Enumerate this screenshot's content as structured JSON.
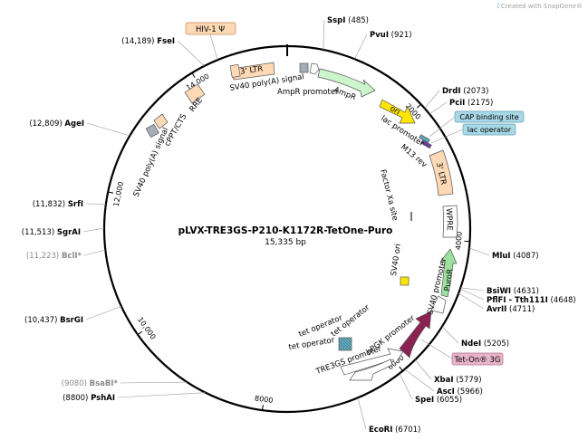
{
  "plasmid": {
    "name": "pLVX-TRE3GS-P210-K1172R-TetOne-Puro",
    "length_label": "15,335 bp",
    "total_bp": 15335
  },
  "brand": {
    "text": "Created with SnapGene®",
    "icon": "snapgene-logo-icon"
  },
  "ruler_ticks": [
    {
      "bp": 2000,
      "label": "2000"
    },
    {
      "bp": 4000,
      "label": "4000"
    },
    {
      "bp": 6000,
      "label": "6000"
    },
    {
      "bp": 8000,
      "label": "8000"
    },
    {
      "bp": 10000,
      "label": "10,000"
    },
    {
      "bp": 12000,
      "label": "12,000"
    },
    {
      "bp": 14000,
      "label": "14,000"
    }
  ],
  "sites_right": [
    {
      "enzyme": "SspI",
      "position": "(485)",
      "bp": 485,
      "gray": false
    },
    {
      "enzyme": "PvuI",
      "position": "(921)",
      "bp": 921,
      "gray": false
    },
    {
      "enzyme": "DrdI",
      "position": "(2073)",
      "bp": 2073,
      "gray": false
    },
    {
      "enzyme": "PciI",
      "position": "(2175)",
      "bp": 2175,
      "gray": false
    },
    {
      "enzyme": "MluI",
      "position": "(4087)",
      "bp": 4087,
      "gray": false
    },
    {
      "enzyme": "BsiWI",
      "position": "(4631)",
      "bp": 4631,
      "gray": false
    },
    {
      "enzyme": "PflFI - Tth111I",
      "position": "(4648)",
      "bp": 4648,
      "gray": false
    },
    {
      "enzyme": "AvrII",
      "position": "(4711)",
      "bp": 4711,
      "gray": false
    },
    {
      "enzyme": "NdeI",
      "position": "(5205)",
      "bp": 5205,
      "gray": false
    },
    {
      "enzyme": "XbaI",
      "position": "(5779)",
      "bp": 5779,
      "gray": false
    },
    {
      "enzyme": "AscI",
      "position": "(5966)",
      "bp": 5966,
      "gray": false
    },
    {
      "enzyme": "SpeI",
      "position": "(6055)",
      "bp": 6055,
      "gray": false
    },
    {
      "enzyme": "EcoRI",
      "position": "(6701)",
      "bp": 6701,
      "gray": false
    }
  ],
  "sites_left": [
    {
      "enzyme": "FseI",
      "position": "(14,189)",
      "bp": 14189,
      "gray": false
    },
    {
      "enzyme": "AgeI",
      "position": "(12,809)",
      "bp": 12809,
      "gray": false
    },
    {
      "enzyme": "SrfI",
      "position": "(11,832)",
      "bp": 11832,
      "gray": false
    },
    {
      "enzyme": "SgrAI",
      "position": "(11,513)",
      "bp": 11513,
      "gray": false
    },
    {
      "enzyme": "BclI*",
      "position": "(11,223)",
      "bp": 11223,
      "gray": true
    },
    {
      "enzyme": "BsrGI",
      "position": "(10,437)",
      "bp": 10437,
      "gray": false
    },
    {
      "enzyme": "BsaBI*",
      "position": "(9080)",
      "bp": 9080,
      "gray": true
    },
    {
      "enzyme": "PshAI",
      "position": "(8800)",
      "bp": 8800,
      "gray": false
    }
  ],
  "boxed_labels": [
    {
      "text": "HIV-1 Ψ",
      "style": "orange"
    },
    {
      "text": "CAP binding site",
      "style": "blue"
    },
    {
      "text": "lac operator",
      "style": "blue"
    },
    {
      "text": "Tet-On® 3G",
      "style": "pink"
    }
  ],
  "feature_labels": [
    {
      "text": "3' LTR"
    },
    {
      "text": "SV40 poly(A) signal"
    },
    {
      "text": "AmpR promoter"
    },
    {
      "text": "AmpR"
    },
    {
      "text": "ori"
    },
    {
      "text": "lac promoter"
    },
    {
      "text": "M13 rev"
    },
    {
      "text": "3' LTR"
    },
    {
      "text": "Factor Xa site"
    },
    {
      "text": "WPRE"
    },
    {
      "text": "SV40 ori"
    },
    {
      "text": "SV40 promoter"
    },
    {
      "text": "PuroR"
    },
    {
      "text": "hPGK promoter"
    },
    {
      "text": "TRE3GS promoter"
    },
    {
      "text": "tet operator"
    },
    {
      "text": "tet operator"
    },
    {
      "text": "tet operator"
    },
    {
      "text": "RRE"
    },
    {
      "text": "cPPT/CTS"
    },
    {
      "text": "SV40 poly(A) signal"
    }
  ],
  "colors": {
    "ltr": "#fdd9b5",
    "ampr": "#ccf5cc",
    "ori": "#ffe600",
    "puror": "#9ee09e",
    "tet_on": "#8b2252",
    "gray_feature": "#a6adb5",
    "blue_label": "#a9d8e6",
    "pink_label": "#e8b4c8",
    "backbone": "#000000"
  }
}
